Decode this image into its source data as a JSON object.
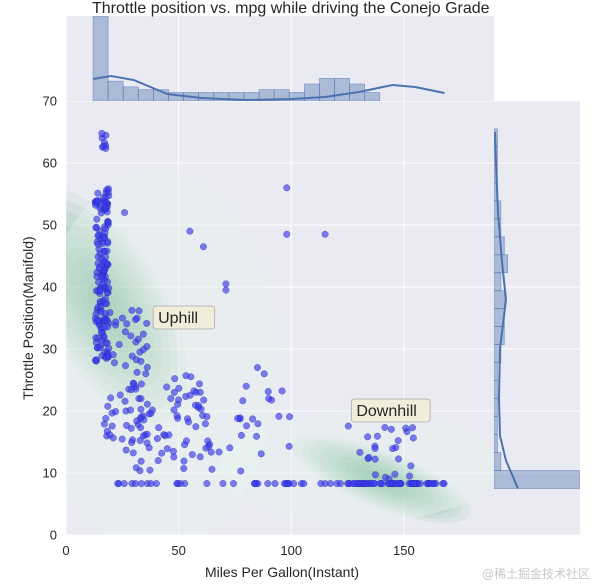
{
  "chart_data": {
    "type": "scatter",
    "title": "Throttle position vs. mpg while driving the Conejo Grade",
    "xlabel": "Miles Per Gallon(Instant)",
    "ylabel": "Throttle Position(Manifold)",
    "xlim": [
      0,
      190
    ],
    "ylim": [
      0,
      70
    ],
    "x_ticks": [
      "0",
      "50",
      "100",
      "150"
    ],
    "y_ticks": [
      "0",
      "10",
      "20",
      "30",
      "40",
      "50",
      "60",
      "70"
    ],
    "grid": true,
    "annotations": [
      {
        "text": "Uphill",
        "x": 40,
        "y": 35
      },
      {
        "text": "Downhill",
        "x": 128,
        "y": 20
      }
    ],
    "marginal_x_hist": {
      "bin_width": 6.7,
      "bin_start": 12,
      "counts": [
        30,
        7,
        5,
        4,
        4,
        3,
        3,
        3,
        3,
        3,
        3,
        4,
        4,
        3,
        6,
        8,
        8,
        6,
        3
      ]
    },
    "marginal_y_hist": {
      "bin_width": 2.9,
      "bin_start": 7.5,
      "counts": [
        25,
        2,
        1,
        1,
        1,
        1,
        1,
        2,
        3,
        3,
        3,
        2,
        4,
        3,
        2,
        2,
        1,
        1,
        1,
        1
      ]
    },
    "density_centers": [
      {
        "x": 12,
        "y": 40,
        "sx": 10,
        "sy": 6
      },
      {
        "x": 140,
        "y": 9,
        "sx": 14,
        "sy": 3
      }
    ],
    "colors": {
      "points": "#3a3ae8",
      "density": "#2e9a5c",
      "hist": "#4c72b0",
      "background": "#eaeaf2"
    }
  },
  "watermark": "@稀土掘金技术社区"
}
